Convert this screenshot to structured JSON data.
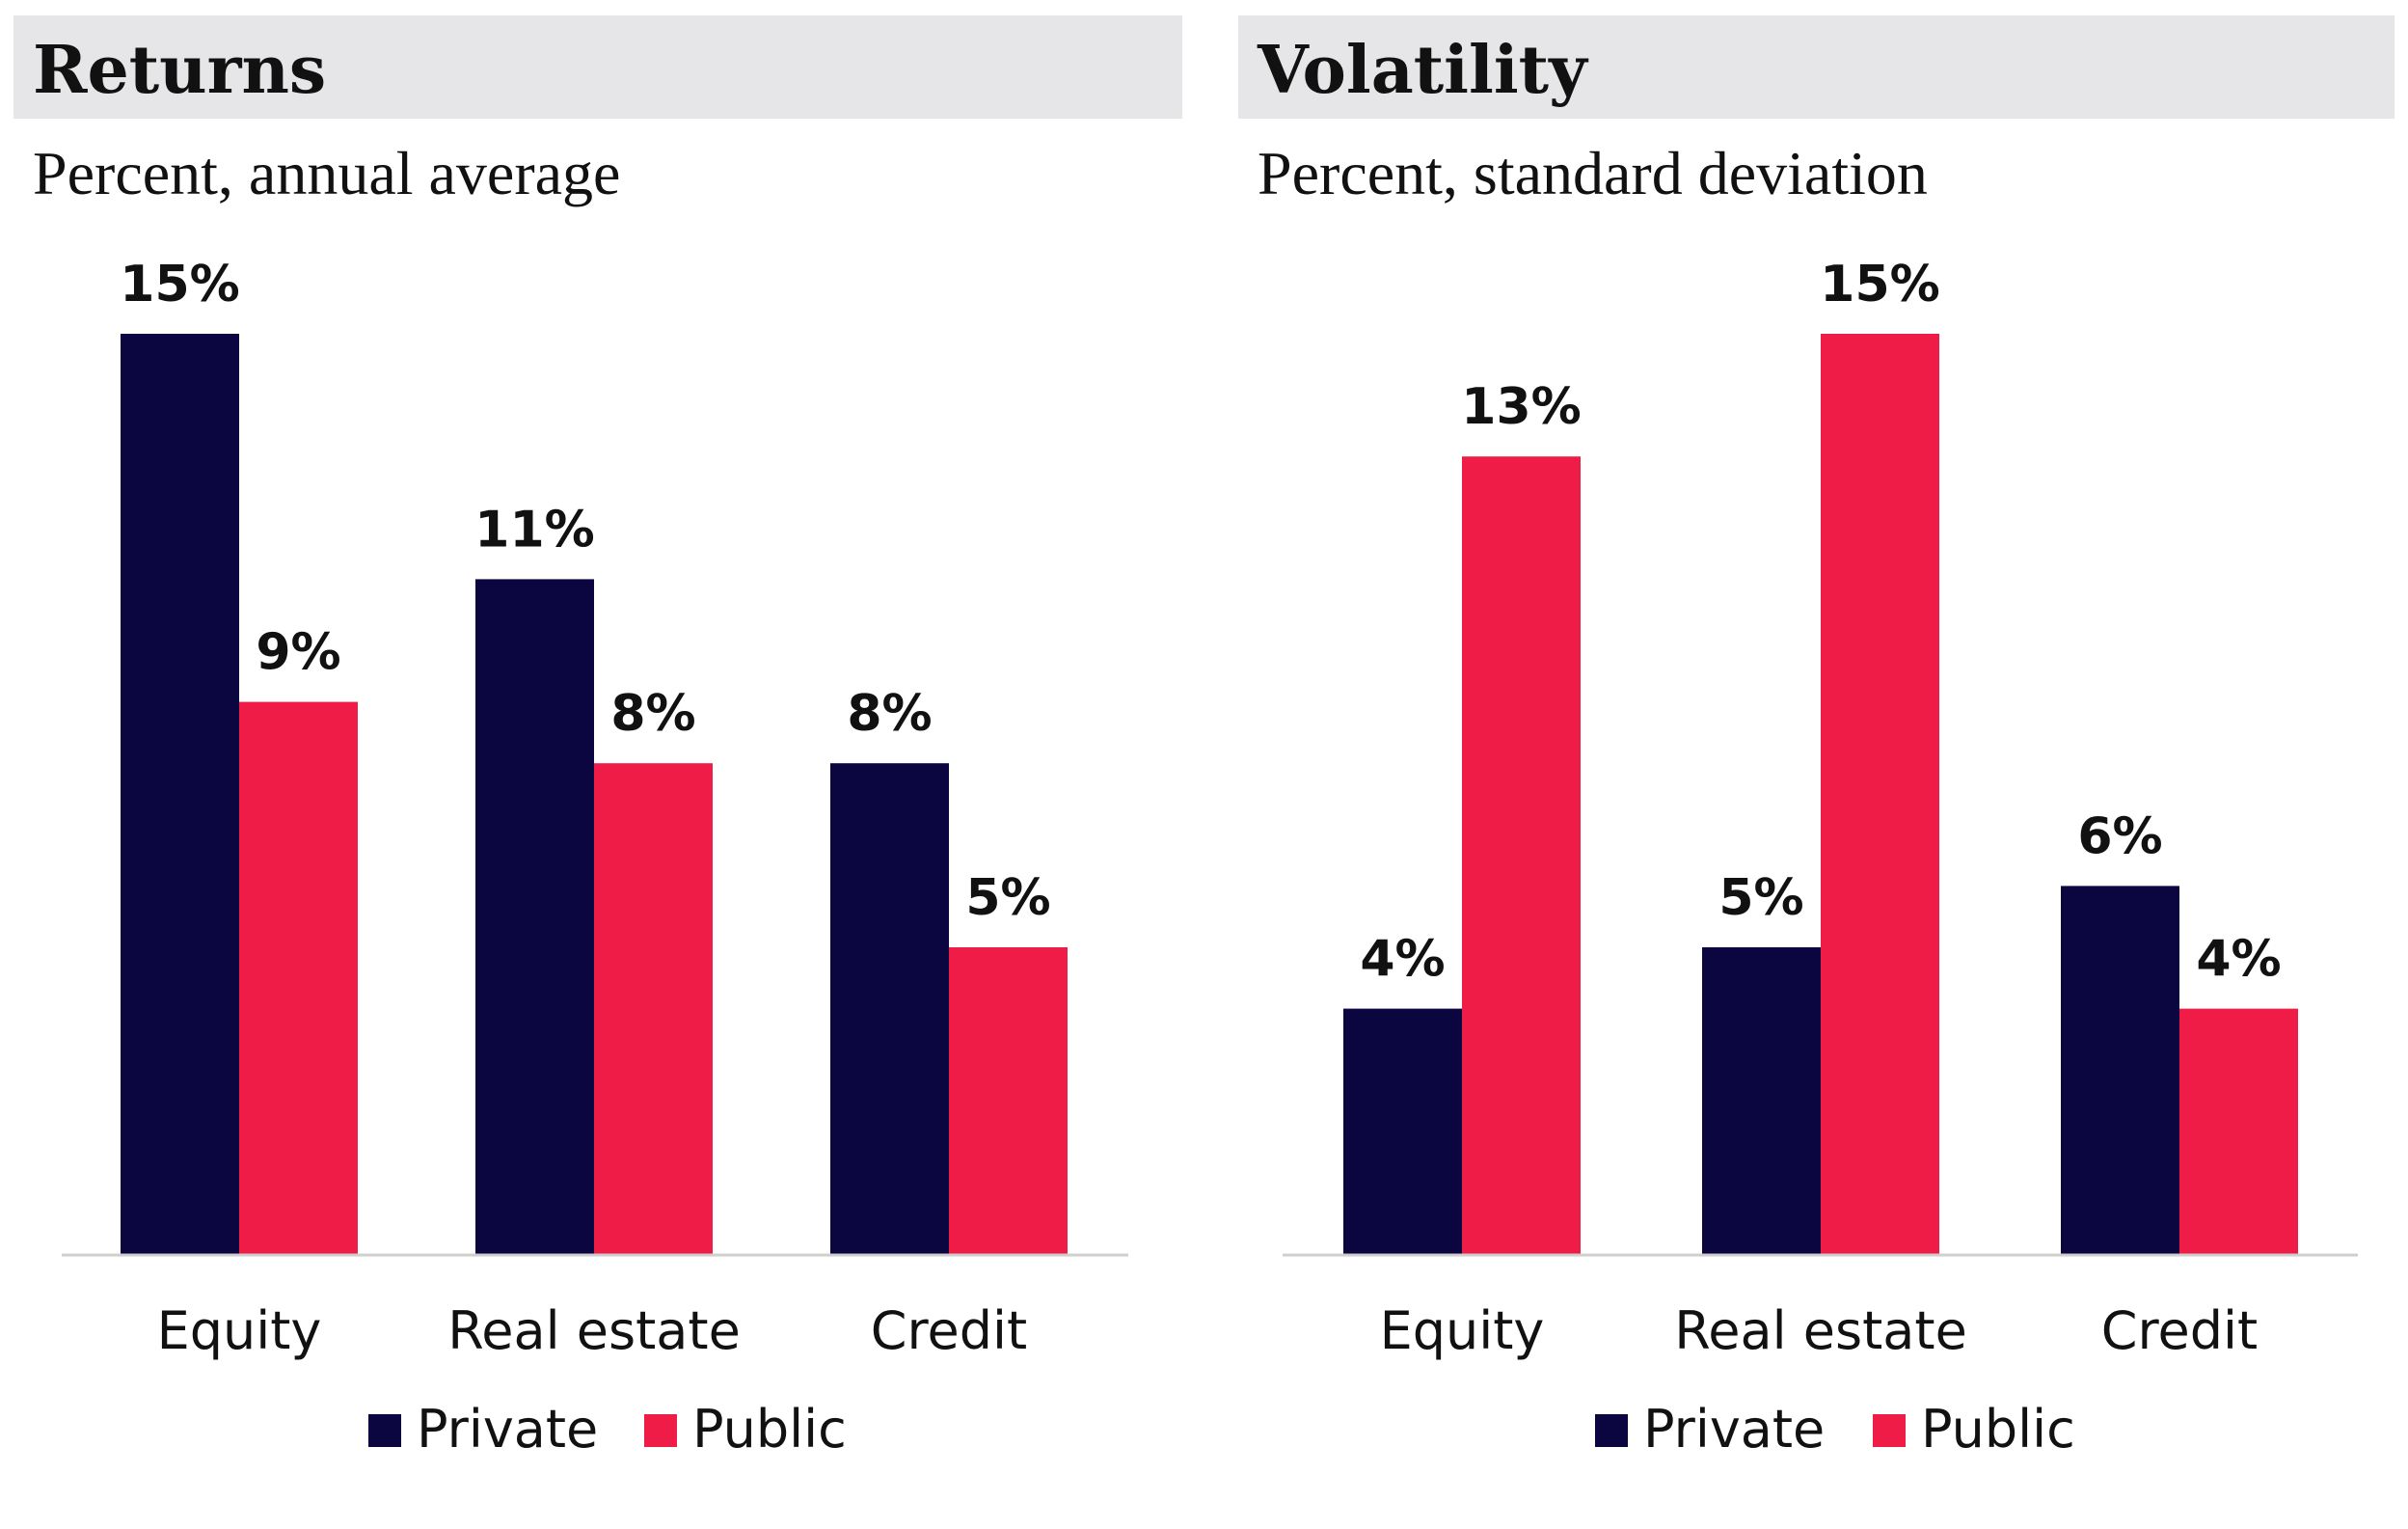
{
  "colors": {
    "private": "#0b0540",
    "public": "#ee1c47",
    "header_band": "#e6e6e8",
    "baseline": "#cfcfcf"
  },
  "chart_data": [
    {
      "type": "bar",
      "title": "Returns",
      "subtitle": "Percent, annual average",
      "categories": [
        "Equity",
        "Real estate",
        "Credit"
      ],
      "series": [
        {
          "name": "Private",
          "values": [
            15,
            11,
            8
          ],
          "labels": [
            "15%",
            "11%",
            "8%"
          ]
        },
        {
          "name": "Public",
          "values": [
            9,
            8,
            5
          ],
          "labels": [
            "9%",
            "8%",
            "5%"
          ]
        }
      ],
      "ylim": [
        0,
        15
      ],
      "grid": false,
      "legend": "bottom-center"
    },
    {
      "type": "bar",
      "title": "Volatility",
      "subtitle": "Percent, standard deviation",
      "categories": [
        "Equity",
        "Real estate",
        "Credit"
      ],
      "series": [
        {
          "name": "Private",
          "values": [
            4,
            5,
            6
          ],
          "labels": [
            "4%",
            "5%",
            "6%"
          ]
        },
        {
          "name": "Public",
          "values": [
            13,
            15,
            4
          ],
          "labels": [
            "13%",
            "15%",
            "4%"
          ]
        }
      ],
      "ylim": [
        0,
        15
      ],
      "grid": false,
      "legend": "bottom-center"
    }
  ]
}
